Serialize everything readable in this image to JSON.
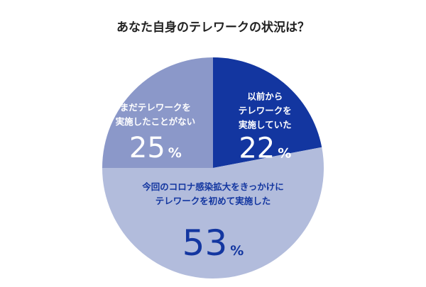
{
  "chart_data": {
    "type": "pie",
    "title": "あなた自身のテレワークの状況は？",
    "slices": [
      {
        "label_lines": [
          "以前から",
          "テレワークを",
          "実施していた"
        ],
        "value": 22,
        "value_text": "22",
        "unit": "%",
        "color": "#1336a0",
        "text_color": "#ffffff"
      },
      {
        "label_lines": [
          "今回のコロナ感染拡大をきっかけに",
          "テレワークを初めて実施した"
        ],
        "value": 53,
        "value_text": "53",
        "unit": "%",
        "color": "#b2bcdc",
        "text_color": "#1336a0"
      },
      {
        "label_lines": [
          "まだテレワークを",
          "実施したことがない"
        ],
        "value": 25,
        "value_text": "25",
        "unit": "%",
        "color": "#8b98c9",
        "text_color": "#ffffff"
      }
    ],
    "start_angle_deg": 0,
    "direction": "clockwise"
  }
}
